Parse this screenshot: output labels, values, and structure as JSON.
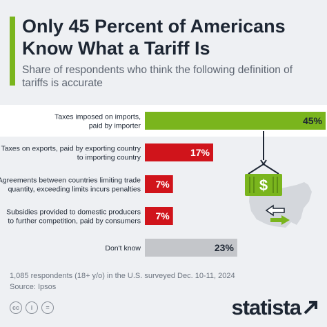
{
  "title": "Only 45 Percent of Americans Know What a Tariff Is",
  "subtitle": "Share of respondents who think the following definition of tariffs is accurate",
  "chart_data": {
    "type": "bar",
    "orientation": "horizontal",
    "categories": [
      [
        "Taxes imposed on imports,",
        "paid by importer"
      ],
      [
        "Taxes on exports, paid by exporting country",
        "to importing country"
      ],
      [
        "Agreements between countries limiting trade",
        "quantity, exceeding limits incurs penalties"
      ],
      [
        "Subsidies provided to domestic producers",
        "to further competition, paid by consumers"
      ],
      [
        "Don't know"
      ]
    ],
    "values": [
      45,
      17,
      7,
      7,
      23
    ],
    "value_labels": [
      "45%",
      "17%",
      "7%",
      "7%",
      "23%"
    ],
    "bar_colors": [
      "#7ab51d",
      "#d0141b",
      "#d0141b",
      "#d0141b",
      "#c4c6ca"
    ],
    "label_colors": [
      "#1d2633",
      "#ffffff",
      "#ffffff",
      "#ffffff",
      "#1d2633"
    ],
    "xlim": [
      0,
      45
    ],
    "grid": false,
    "legend": "none"
  },
  "illustration": {
    "icons": [
      "shipping-container-dollar-icon",
      "us-map-icon",
      "arrows-icon"
    ],
    "colors": {
      "green": "#7ab51d",
      "dark": "#1d2633",
      "map": "#d4d7dc"
    },
    "symbol": "$"
  },
  "footnote": {
    "note": "1,085 respondents (18+ y/o) in the U.S. surveyed Dec. 10-11, 2024",
    "source": "Source: Ipsos"
  },
  "footer": {
    "icons": [
      {
        "name": "cc-icon",
        "glyph": "cc"
      },
      {
        "name": "by-icon",
        "glyph": "i"
      },
      {
        "name": "nd-icon",
        "glyph": "="
      }
    ],
    "logo": "statista"
  }
}
